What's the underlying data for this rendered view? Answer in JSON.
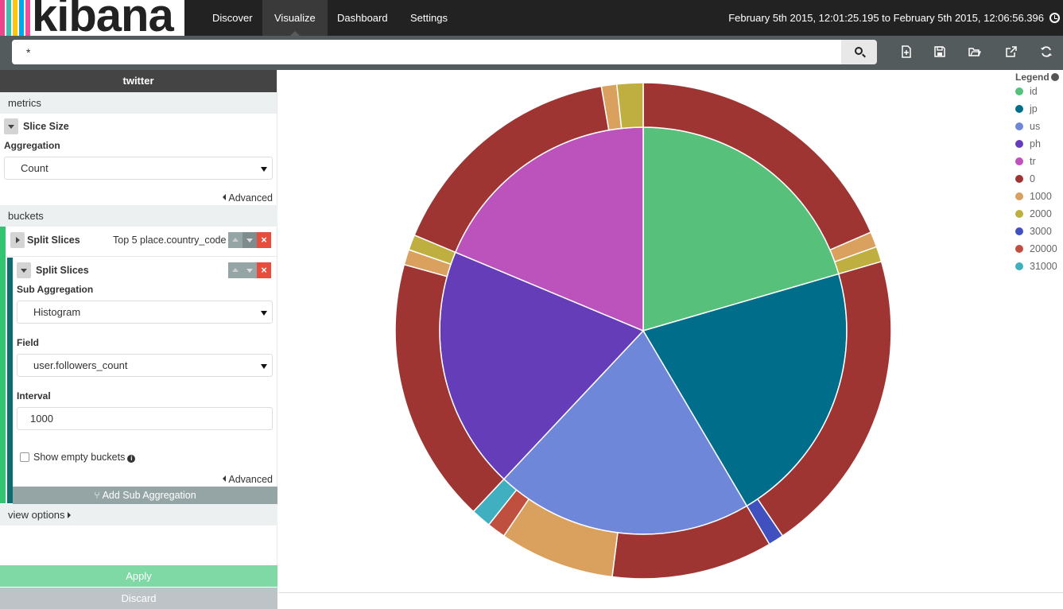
{
  "app": {
    "logo_text": "kibana",
    "logo_stripes": [
      "#e8478b",
      "#3ebeb0",
      "#fec514",
      "#00a9e5",
      "#f04e98"
    ],
    "nav": [
      "Discover",
      "Visualize",
      "Dashboard",
      "Settings"
    ],
    "active_nav": "Visualize",
    "time_range": "February 5th 2015, 12:01:25.195 to February 5th 2015, 12:06:56.396"
  },
  "search": {
    "query": "*"
  },
  "toolbar_icons": [
    "new-visualization-icon",
    "save-icon",
    "open-icon",
    "share-icon",
    "refresh-icon"
  ],
  "sidebar": {
    "index": "twitter",
    "metrics_label": "metrics",
    "metric": {
      "title": "Slice Size",
      "aggregation_label": "Aggregation",
      "aggregation_value": "Count",
      "advanced": "Advanced"
    },
    "buckets_label": "buckets",
    "bucket1": {
      "title": "Split Slices",
      "summary": "Top 5 place.country_code"
    },
    "bucket2": {
      "title": "Split Slices",
      "sub_agg_label": "Sub Aggregation",
      "sub_agg_value": "Histogram",
      "field_label": "Field",
      "field_value": "user.followers_count",
      "interval_label": "Interval",
      "interval_value": "1000",
      "show_empty": "Show empty buckets",
      "advanced": "Advanced"
    },
    "add_sub": "Add Sub Aggregation",
    "view_options": "view options",
    "apply": "Apply",
    "discard": "Discard"
  },
  "legend": {
    "title": "Legend",
    "items": [
      {
        "label": "id",
        "color": "#57c17b"
      },
      {
        "label": "jp",
        "color": "#006e8a"
      },
      {
        "label": "us",
        "color": "#6f87d8"
      },
      {
        "label": "ph",
        "color": "#663db8"
      },
      {
        "label": "tr",
        "color": "#bc52bc"
      },
      {
        "label": "0",
        "color": "#9e3533"
      },
      {
        "label": "1000",
        "color": "#daa05d"
      },
      {
        "label": "2000",
        "color": "#bfaf40"
      },
      {
        "label": "3000",
        "color": "#4050bf"
      },
      {
        "label": "20000",
        "color": "#bf5040"
      },
      {
        "label": "31000",
        "color": "#40afbf"
      }
    ]
  },
  "chart_data": {
    "type": "pie",
    "donut_levels": 2,
    "inner": {
      "field": "place.country_code",
      "slices": [
        {
          "label": "id",
          "value": 20.5
        },
        {
          "label": "jp",
          "value": 21.0
        },
        {
          "label": "us",
          "value": 20.5
        },
        {
          "label": "ph",
          "value": 19.3
        },
        {
          "label": "tr",
          "value": 18.7
        }
      ]
    },
    "outer": {
      "field": "user.followers_count",
      "slices": [
        {
          "parent": "id",
          "label": "0",
          "value": 18.5
        },
        {
          "parent": "id",
          "label": "1000",
          "value": 1.0
        },
        {
          "parent": "id",
          "label": "2000",
          "value": 1.0
        },
        {
          "parent": "jp",
          "label": "0",
          "value": 20.0
        },
        {
          "parent": "jp",
          "label": "3000",
          "value": 1.0
        },
        {
          "parent": "us",
          "label": "0",
          "value": 10.5
        },
        {
          "parent": "us",
          "label": "1000",
          "value": 7.5
        },
        {
          "parent": "us",
          "label": "20000",
          "value": 1.2
        },
        {
          "parent": "us",
          "label": "31000",
          "value": 1.3
        },
        {
          "parent": "ph",
          "label": "0",
          "value": 17.3
        },
        {
          "parent": "ph",
          "label": "1000",
          "value": 1.0
        },
        {
          "parent": "ph",
          "label": "2000",
          "value": 1.0
        },
        {
          "parent": "tr",
          "label": "0",
          "value": 16.0
        },
        {
          "parent": "tr",
          "label": "1000",
          "value": 1.0
        },
        {
          "parent": "tr",
          "label": "2000",
          "value": 1.7
        }
      ]
    }
  }
}
